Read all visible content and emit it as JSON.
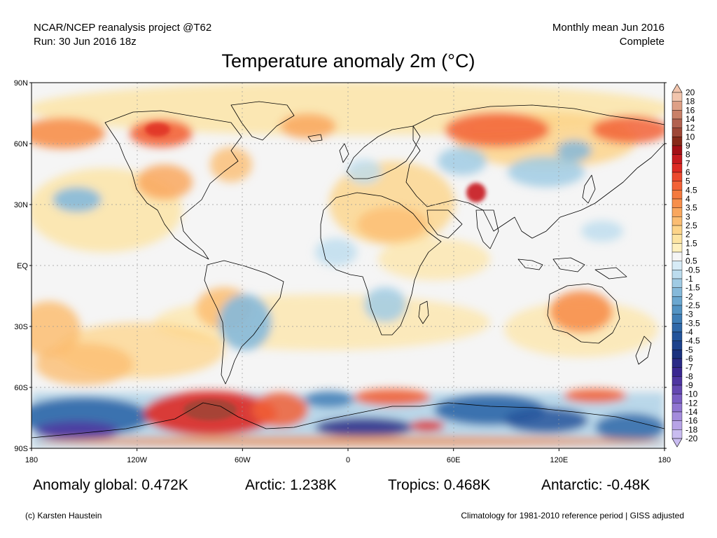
{
  "header": {
    "project": "NCAR/NCEP reanalysis project @T62",
    "run": "Run: 30 Jun 2016 18z",
    "period": "Monthly mean Jun 2016",
    "status": "Complete"
  },
  "title": "Temperature anomaly 2m (°C)",
  "axes": {
    "lat_labels": [
      "90N",
      "60N",
      "30N",
      "EQ",
      "30S",
      "60S",
      "90S"
    ],
    "lon_labels": [
      "180",
      "120W",
      "60W",
      "0",
      "60E",
      "120E",
      "180"
    ]
  },
  "colorbar": {
    "labels": [
      "20",
      "18",
      "16",
      "14",
      "12",
      "10",
      "9",
      "8",
      "7",
      "6",
      "5",
      "4.5",
      "4",
      "3.5",
      "3",
      "2.5",
      "2",
      "1.5",
      "1",
      "0.5",
      "-0.5",
      "-1",
      "-1.5",
      "-2",
      "-2.5",
      "-3",
      "-3.5",
      "-4",
      "-4.5",
      "-5",
      "-6",
      "-7",
      "-8",
      "-9",
      "-10",
      "-12",
      "-14",
      "-16",
      "-18",
      "-20"
    ],
    "colors": [
      "#f2c5ad",
      "#dea086",
      "#c98067",
      "#b26250",
      "#9e4736",
      "#872918",
      "#a30f15",
      "#c61a1e",
      "#dd2a23",
      "#ec4a2e",
      "#f26237",
      "#f47a3e",
      "#f78f4b",
      "#f9a75e",
      "#fbbd72",
      "#fdd489",
      "#fde4a2",
      "#fff0bf",
      "#f5f5f5",
      "#d7ebf6",
      "#bcdcee",
      "#a0cbe4",
      "#85b9da",
      "#6ba7d0",
      "#5393c3",
      "#3f7eb6",
      "#2f68a8",
      "#23549b",
      "#1d428c",
      "#1a317e",
      "#2a2a86",
      "#3a2790",
      "#4e35a0",
      "#6448b1",
      "#7a5ec3",
      "#9075d1",
      "#a48cdc",
      "#b7a3e6",
      "#c9bcf0"
    ]
  },
  "stats": {
    "global": "Anomaly global: 0.472K",
    "arctic": "Arctic: 1.238K",
    "tropics": "Tropics: 0.468K",
    "antarctic": "Antarctic: -0.48K"
  },
  "footer": {
    "credit": "(c) Karsten Haustein",
    "note": "Climatology for 1981-2010 reference period | GISS adjusted"
  }
}
